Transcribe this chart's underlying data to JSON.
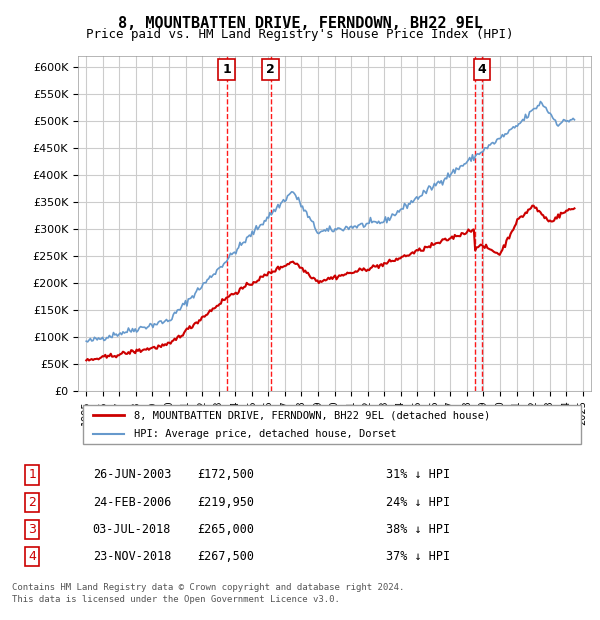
{
  "title": "8, MOUNTBATTEN DRIVE, FERNDOWN, BH22 9EL",
  "subtitle": "Price paid vs. HM Land Registry's House Price Index (HPI)",
  "footer1": "Contains HM Land Registry data © Crown copyright and database right 2024.",
  "footer2": "This data is licensed under the Open Government Licence v3.0.",
  "legend_property": "8, MOUNTBATTEN DRIVE, FERNDOWN, BH22 9EL (detached house)",
  "legend_hpi": "HPI: Average price, detached house, Dorset",
  "transactions": [
    {
      "num": 1,
      "date": "26-JUN-2003",
      "price": 172500,
      "pct": "31% ↓ HPI",
      "year": 2003.48
    },
    {
      "num": 2,
      "date": "24-FEB-2006",
      "price": 219950,
      "pct": "24% ↓ HPI",
      "year": 2006.14
    },
    {
      "num": 3,
      "date": "03-JUL-2018",
      "price": 265000,
      "pct": "38% ↓ HPI",
      "year": 2018.5
    },
    {
      "num": 4,
      "date": "23-NOV-2018",
      "price": 267500,
      "pct": "37% ↓ HPI",
      "year": 2018.9
    }
  ],
  "ylim": [
    0,
    620000
  ],
  "yticks": [
    0,
    50000,
    100000,
    150000,
    200000,
    250000,
    300000,
    350000,
    400000,
    450000,
    500000,
    550000,
    600000
  ],
  "xlim": [
    1994.5,
    2025.5
  ],
  "background_color": "#ffffff",
  "grid_color": "#cccccc",
  "property_line_color": "#cc0000",
  "hpi_line_color": "#6699cc",
  "dashed_line_color": "#ff0000",
  "shade_color": "#ddeeff",
  "marker_box_color": "#cc0000",
  "table_num_color": "#cc0000"
}
